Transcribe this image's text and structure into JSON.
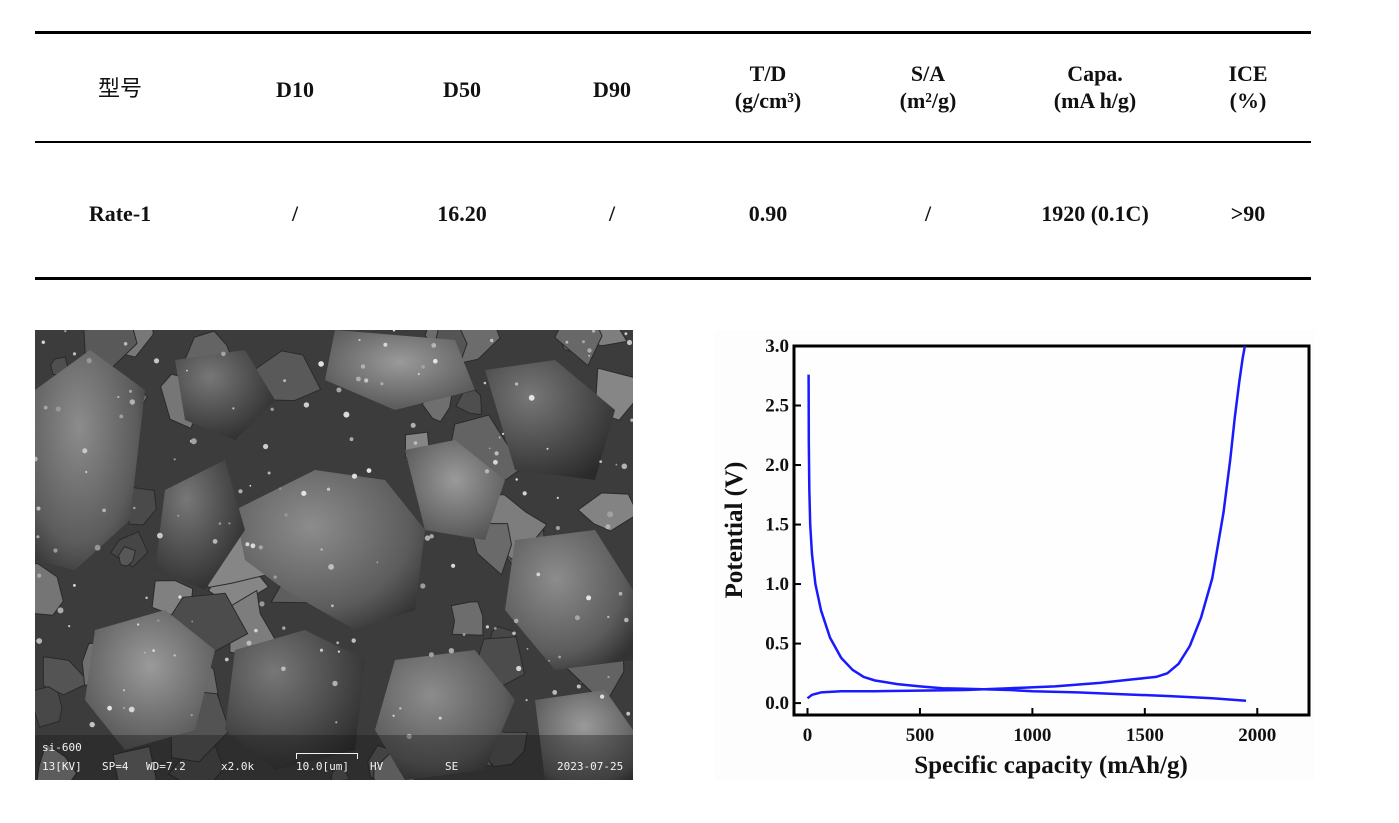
{
  "table": {
    "headers": [
      {
        "line1": "型号",
        "line2": ""
      },
      {
        "line1": "D10",
        "line2": ""
      },
      {
        "line1": "D50",
        "line2": ""
      },
      {
        "line1": "D90",
        "line2": ""
      },
      {
        "line1": "T/D",
        "line2": "(g/cm³)"
      },
      {
        "line1": "S/A",
        "line2": "(m²/g)"
      },
      {
        "line1": "Capa.",
        "line2": "(mA h/g)"
      },
      {
        "line1": "ICE",
        "line2": "(%)"
      }
    ],
    "rows": [
      [
        "Rate-1",
        "/",
        "16.20",
        "/",
        "0.90",
        "/",
        "1920 (0.1C)",
        ">90"
      ]
    ]
  },
  "sem": {
    "sample": "si-600",
    "kv": "13[KV]",
    "sp": "SP=4",
    "wd": "WD=7.2",
    "mag": "x2.0k",
    "scale": "10.0[um]",
    "hv": "HV",
    "mode": "SE",
    "date": "2023-07-25"
  },
  "chart_data": {
    "type": "line",
    "title": "",
    "xlabel": "Specific capacity (mAh/g)",
    "ylabel": "Potential (V)",
    "xlim": [
      -60,
      2230
    ],
    "ylim": [
      -0.1,
      3.0
    ],
    "xticks": [
      0,
      500,
      1000,
      1500,
      2000
    ],
    "yticks": [
      0.0,
      0.5,
      1.0,
      1.5,
      2.0,
      2.5,
      3.0
    ],
    "ytick_labels": [
      "0.0",
      "0.5",
      "1.0",
      "1.5",
      "2.0",
      "2.5",
      "3.0"
    ],
    "color": "#1a1aff",
    "series": [
      {
        "x": [
          5,
          6,
          8,
          12,
          20,
          35,
          60,
          100,
          150,
          200,
          250,
          300,
          400,
          500,
          600,
          700,
          800,
          900,
          1000,
          1200,
          1400,
          1600,
          1800,
          1950
        ],
        "y": [
          2.76,
          2.2,
          1.8,
          1.5,
          1.25,
          1.0,
          0.78,
          0.55,
          0.38,
          0.28,
          0.22,
          0.19,
          0.16,
          0.14,
          0.125,
          0.12,
          0.115,
          0.11,
          0.1,
          0.09,
          0.075,
          0.06,
          0.04,
          0.02
        ]
      },
      {
        "x": [
          0,
          20,
          60,
          150,
          300,
          500,
          700,
          900,
          1100,
          1300,
          1450,
          1550,
          1600,
          1650,
          1700,
          1750,
          1800,
          1850,
          1880,
          1900,
          1920,
          1935,
          1945
        ],
        "y": [
          0.04,
          0.07,
          0.09,
          0.1,
          0.1,
          0.105,
          0.11,
          0.125,
          0.14,
          0.17,
          0.2,
          0.22,
          0.25,
          0.33,
          0.48,
          0.72,
          1.05,
          1.6,
          2.05,
          2.4,
          2.7,
          2.9,
          3.0
        ]
      }
    ]
  }
}
